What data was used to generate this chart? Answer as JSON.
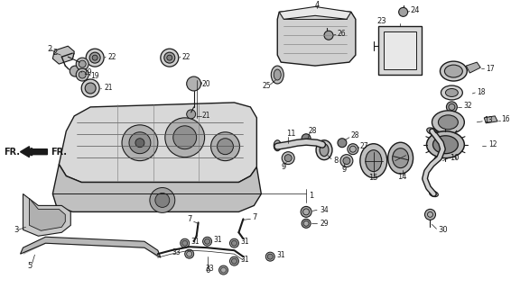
{
  "background_color": "#ffffff",
  "line_color": "#1a1a1a",
  "fig_width": 5.66,
  "fig_height": 3.2,
  "dpi": 100
}
